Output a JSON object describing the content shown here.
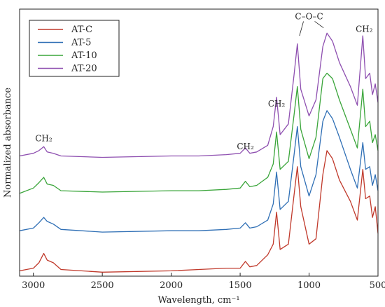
{
  "chart_data": {
    "type": "line",
    "xlabel": "Wavelength, cm⁻¹",
    "ylabel": "Normalized absorbance",
    "x_reversed": true,
    "xlim": [
      3100,
      500
    ],
    "ylim": [
      0,
      1
    ],
    "xticks": [
      3000,
      2500,
      2000,
      1500,
      1000,
      500
    ],
    "grid": false,
    "legend_position": "top-left",
    "colors": {
      "AT-C": "#c0392b",
      "AT-5": "#2f6fb5",
      "AT-10": "#3aa53a",
      "AT-20": "#8e4fb0"
    },
    "annotations": [
      {
        "text": "CH₂",
        "x": 2925,
        "y": 0.505
      },
      {
        "text": "CH₂",
        "x": 1462,
        "y": 0.475
      },
      {
        "text": "CH₂",
        "x": 1236,
        "y": 0.635
      },
      {
        "text": "C–O–C",
        "x": 1000,
        "y": 0.962
      },
      {
        "text": "CH₂",
        "x": 600,
        "y": 0.915
      }
    ],
    "series": [
      {
        "name": "AT-C",
        "x": [
          3100,
          3000,
          2960,
          2925,
          2900,
          2855,
          2800,
          2500,
          2000,
          1800,
          1600,
          1500,
          1462,
          1430,
          1380,
          1300,
          1260,
          1236,
          1210,
          1150,
          1110,
          1085,
          1060,
          1000,
          950,
          900,
          870,
          830,
          780,
          700,
          650,
          610,
          590,
          560,
          540,
          520,
          500
        ],
        "y": [
          0.02,
          0.03,
          0.05,
          0.085,
          0.06,
          0.05,
          0.025,
          0.015,
          0.02,
          0.025,
          0.03,
          0.03,
          0.055,
          0.035,
          0.04,
          0.08,
          0.12,
          0.24,
          0.1,
          0.12,
          0.3,
          0.41,
          0.26,
          0.12,
          0.14,
          0.38,
          0.47,
          0.44,
          0.36,
          0.28,
          0.21,
          0.4,
          0.29,
          0.3,
          0.22,
          0.26,
          0.16
        ]
      },
      {
        "name": "AT-5",
        "x": [
          3100,
          3000,
          2960,
          2925,
          2900,
          2855,
          2800,
          2500,
          2000,
          1800,
          1600,
          1500,
          1462,
          1430,
          1380,
          1300,
          1260,
          1236,
          1210,
          1150,
          1110,
          1085,
          1060,
          1000,
          950,
          900,
          870,
          830,
          780,
          700,
          650,
          610,
          590,
          560,
          540,
          520,
          500
        ],
        "y": [
          0.17,
          0.18,
          0.2,
          0.22,
          0.205,
          0.195,
          0.175,
          0.165,
          0.17,
          0.17,
          0.175,
          0.18,
          0.2,
          0.18,
          0.185,
          0.21,
          0.27,
          0.39,
          0.25,
          0.28,
          0.45,
          0.56,
          0.41,
          0.3,
          0.38,
          0.58,
          0.62,
          0.59,
          0.52,
          0.4,
          0.33,
          0.5,
          0.4,
          0.41,
          0.34,
          0.38,
          0.32
        ]
      },
      {
        "name": "AT-10",
        "x": [
          3100,
          3000,
          2960,
          2925,
          2900,
          2855,
          2800,
          2500,
          2000,
          1800,
          1600,
          1500,
          1462,
          1430,
          1380,
          1300,
          1260,
          1236,
          1210,
          1150,
          1110,
          1085,
          1060,
          1000,
          950,
          900,
          870,
          830,
          780,
          700,
          650,
          610,
          590,
          560,
          540,
          520,
          500
        ],
        "y": [
          0.31,
          0.33,
          0.35,
          0.37,
          0.345,
          0.34,
          0.32,
          0.315,
          0.32,
          0.32,
          0.325,
          0.33,
          0.355,
          0.335,
          0.34,
          0.37,
          0.42,
          0.54,
          0.4,
          0.43,
          0.6,
          0.71,
          0.55,
          0.44,
          0.52,
          0.74,
          0.76,
          0.74,
          0.66,
          0.55,
          0.48,
          0.7,
          0.56,
          0.58,
          0.5,
          0.53,
          0.47
        ]
      },
      {
        "name": "AT-20",
        "x": [
          3100,
          3000,
          2960,
          2925,
          2900,
          2855,
          2800,
          2500,
          2000,
          1800,
          1600,
          1500,
          1462,
          1430,
          1380,
          1300,
          1260,
          1236,
          1210,
          1150,
          1110,
          1085,
          1060,
          1000,
          950,
          900,
          870,
          830,
          780,
          700,
          650,
          610,
          590,
          560,
          540,
          520,
          500
        ],
        "y": [
          0.45,
          0.46,
          0.47,
          0.485,
          0.465,
          0.46,
          0.45,
          0.445,
          0.45,
          0.45,
          0.455,
          0.46,
          0.48,
          0.46,
          0.465,
          0.49,
          0.56,
          0.67,
          0.53,
          0.57,
          0.75,
          0.87,
          0.7,
          0.6,
          0.66,
          0.86,
          0.91,
          0.88,
          0.8,
          0.71,
          0.64,
          0.9,
          0.74,
          0.76,
          0.68,
          0.72,
          0.65
        ]
      }
    ]
  }
}
